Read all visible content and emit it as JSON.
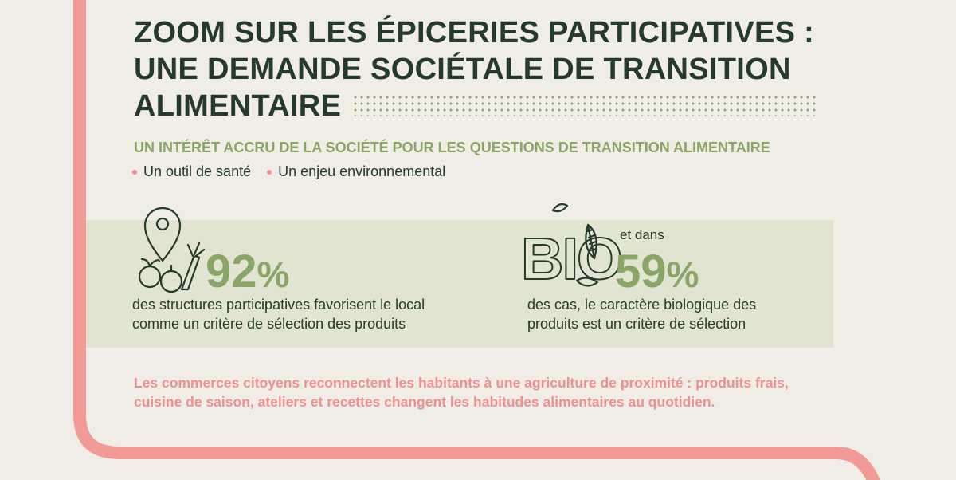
{
  "title_lines": [
    "ZOOM SUR LES ÉPICERIES PARTICIPATIVES :",
    "UNE DEMANDE SOCIÉTALE DE TRANSITION",
    "ALIMENTAIRE"
  ],
  "subtitle": "UN INTÉRÊT ACCRU DE LA SOCIÉTÉ POUR LES QUESTIONS DE TRANSITION ALIMENTAIRE",
  "bullets": [
    "Un outil de santé",
    "Un enjeu environnemental"
  ],
  "stats": [
    {
      "value": "92",
      "unit": "%",
      "text_lines": [
        "des structures participatives favorisent le local",
        "comme un critère de sélection des produits"
      ],
      "icon": "location-pin-vegetables-icon"
    },
    {
      "prefix": "et dans",
      "value": "59",
      "unit": "%",
      "text_lines": [
        "des cas, le caractère biologique des",
        "produits est un critère de sélection"
      ],
      "icon": "bio-leaf-icon",
      "icon_text": "BIO"
    }
  ],
  "conclusion": "Les commerces citoyens reconnectent les habitants à une agriculture de proximité : produits frais, cuisine de saison, ateliers et recettes changent les habitudes alimentaires au quotidien.",
  "colors": {
    "background": "#efede6",
    "title": "#243a2b",
    "accent_green": "#8aa666",
    "accent_pink": "#ef8f8f",
    "band": "#e2e4d2"
  }
}
